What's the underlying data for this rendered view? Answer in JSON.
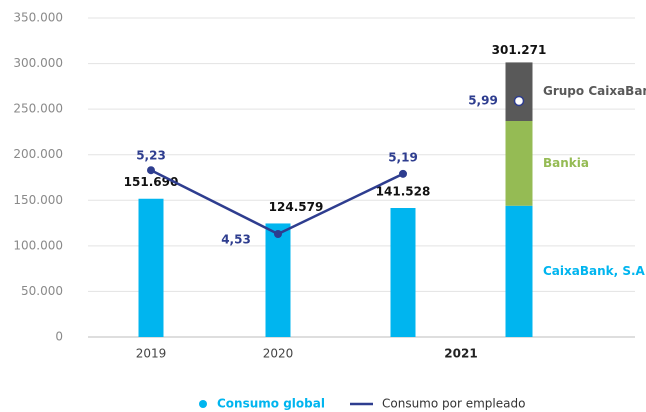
{
  "chart_data": {
    "type": "bar",
    "categories": [
      "2019",
      "2020",
      null,
      null
    ],
    "group_label": "2021",
    "ylim": [
      0,
      350000
    ],
    "yticks": [
      0,
      {
        "value": 50000,
        "label": "50.000"
      },
      {
        "value": 100000,
        "label": "100.000"
      },
      {
        "value": 150000,
        "label": "150.000"
      },
      {
        "value": 200000,
        "label": "200.000"
      },
      {
        "value": 250000,
        "label": "250.000"
      },
      {
        "value": 300000,
        "label": "300.000"
      },
      {
        "value": 350000,
        "label": "350.000"
      }
    ],
    "y2lim": [
      3.4,
      6.9
    ],
    "grid": true,
    "series": [
      {
        "name": "Consumo global",
        "color": "#00b5ef",
        "values": [
          151690,
          124579,
          141528,
          null
        ],
        "value_labels": [
          "151.690",
          "124.579",
          "141.528",
          null
        ]
      },
      {
        "name": "Consumo por empleado",
        "type": "line",
        "axis": "y2",
        "color": "#2e3d8f",
        "values": [
          5.23,
          4.53,
          5.19,
          null
        ],
        "value_labels": [
          "5,23",
          "4,53",
          "5,19",
          null
        ]
      }
    ],
    "stack": {
      "segments": [
        {
          "name": "CaixaBank, S.A.",
          "color": "#00b5ef",
          "values": [
            null,
            null,
            null,
            144000
          ]
        },
        {
          "name": "Bankia",
          "color": "#95bb54",
          "values": [
            null,
            null,
            null,
            93000
          ]
        },
        {
          "name": "Grupo CaixaBank",
          "color": "#595959",
          "values": [
            null,
            null,
            null,
            64271
          ]
        }
      ],
      "totals": [
        null,
        null,
        null,
        301271
      ],
      "total_labels": [
        null,
        null,
        null,
        "301.271"
      ]
    },
    "point_2021": {
      "value": 5.99,
      "label": "5,99"
    }
  }
}
